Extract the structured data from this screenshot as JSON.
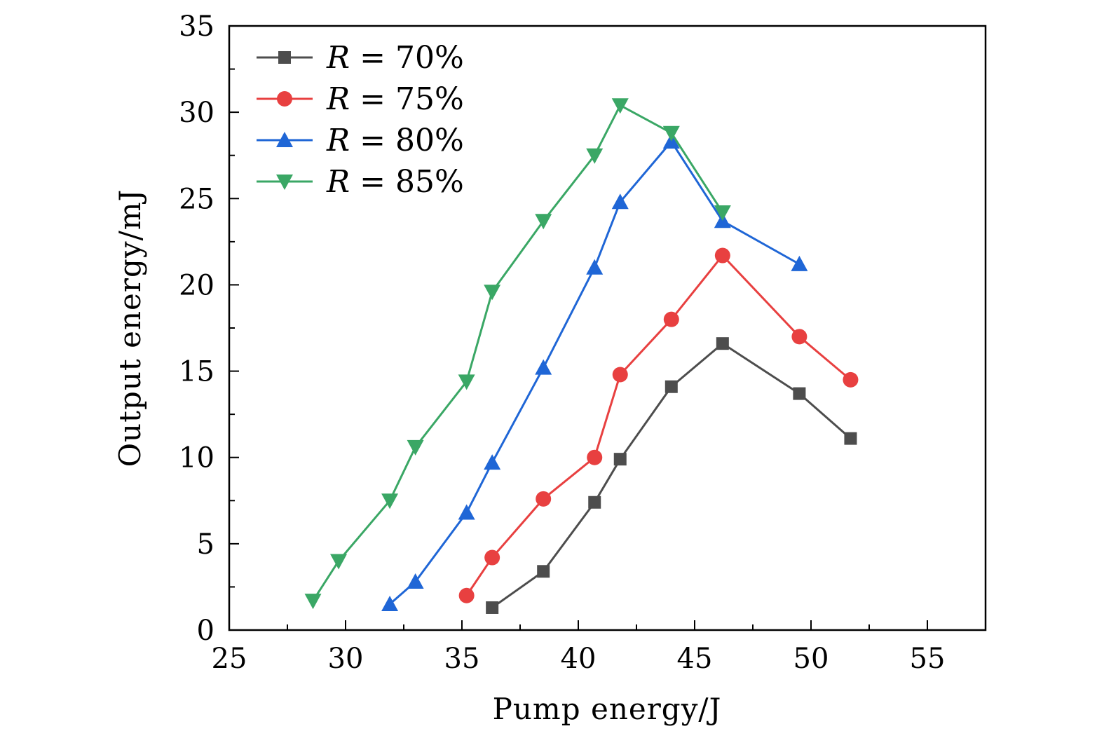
{
  "chart_data": {
    "type": "line",
    "title": "",
    "xlabel": "Pump energy/J",
    "ylabel": "Output energy/mJ",
    "xlim": [
      25,
      57.5
    ],
    "ylim": [
      0,
      35
    ],
    "xticks": [
      25,
      30,
      35,
      40,
      45,
      50,
      55
    ],
    "yticks": [
      0,
      5,
      10,
      15,
      20,
      25,
      30,
      35
    ],
    "grid": false,
    "legend_position": "top-left",
    "series": [
      {
        "name": "R = 70%",
        "name_var": "R",
        "name_rest": " = 70%",
        "color": "#4d4d4d",
        "marker": "square",
        "x": [
          36.3,
          38.5,
          40.7,
          41.8,
          44.0,
          46.2,
          49.5,
          51.7
        ],
        "y": [
          1.3,
          3.4,
          7.4,
          9.9,
          14.1,
          16.6,
          13.7,
          11.1
        ]
      },
      {
        "name": "R = 75%",
        "name_var": "R",
        "name_rest": " = 75%",
        "color": "#e84040",
        "marker": "circle",
        "x": [
          35.2,
          36.3,
          38.5,
          40.7,
          41.8,
          44.0,
          46.2,
          49.5,
          51.7
        ],
        "y": [
          2.0,
          4.2,
          7.6,
          10.0,
          14.8,
          18.0,
          21.7,
          17.0,
          14.5
        ]
      },
      {
        "name": "R = 80%",
        "name_var": "R",
        "name_rest": " = 80%",
        "color": "#1f66d6",
        "marker": "triangle-up",
        "x": [
          31.9,
          33.0,
          35.2,
          36.3,
          38.5,
          40.7,
          41.8,
          44.0,
          46.2,
          49.5
        ],
        "y": [
          1.5,
          2.8,
          6.8,
          9.7,
          15.2,
          21.0,
          24.8,
          28.3,
          23.7,
          21.2
        ]
      },
      {
        "name": "R = 85%",
        "name_var": "R",
        "name_rest": " = 85%",
        "color": "#3aa765",
        "marker": "triangle-down",
        "x": [
          28.6,
          29.7,
          31.9,
          33.0,
          35.2,
          36.3,
          38.5,
          40.7,
          41.8,
          44.0,
          46.2
        ],
        "y": [
          1.7,
          4.0,
          7.5,
          10.6,
          14.4,
          19.6,
          23.7,
          27.5,
          30.4,
          28.8,
          24.2
        ]
      }
    ]
  }
}
